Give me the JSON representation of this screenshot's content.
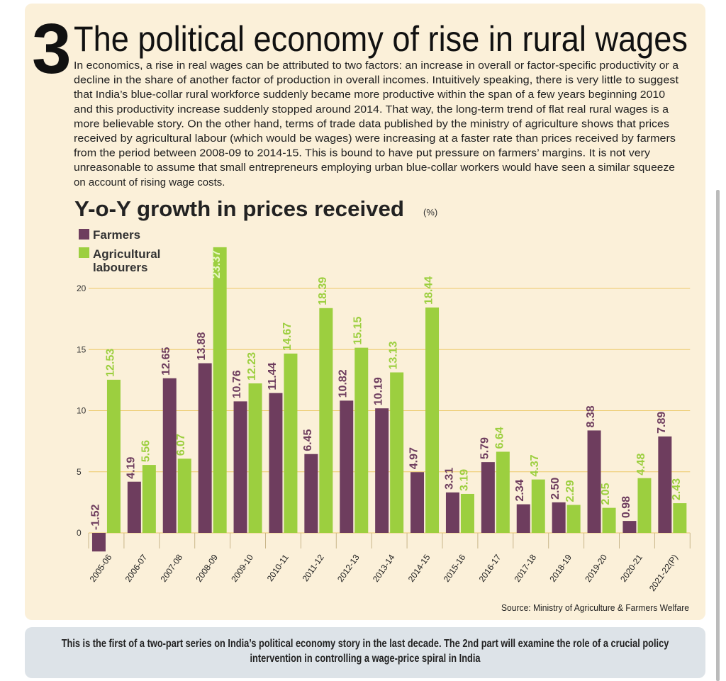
{
  "header": {
    "number": "3",
    "title": "The political economy of rise in rural wages"
  },
  "body": {
    "lines": [
      "In economics, a rise in real wages can be attributed to two factors: an increase in overall or factor-specific productivity or a",
      "decline in the share of another factor of production in overall incomes. Intuitively speaking, there is very little to suggest",
      "that India’s blue-collar rural workforce suddenly became more productive within the span of a few years beginning 2010",
      "and this productivity increase suddenly stopped around 2014. That way, the long-term trend of flat real rural wages is a",
      "more believable story. On the other hand, terms of trade data published by the ministry of agriculture shows that prices",
      "received by agricultural labour (which would be wages) were increasing at a faster rate than prices received by farmers",
      "from the period between 2008-09 to 2014-15. This is bound to have put pressure on farmers’ margins. It is not very",
      "unreasonable to assume that small entrepreneurs employing urban blue-collar workers would have seen a similar squeeze",
      "on account of rising wage costs."
    ]
  },
  "chart_data": {
    "type": "bar",
    "title": "Y-o-Y growth in prices received",
    "unit": "(%)",
    "categories": [
      "2005-06",
      "2006-07",
      "2007-08",
      "2008-09",
      "2009-10",
      "2010-11",
      "2011-12",
      "2012-13",
      "2013-14",
      "2014-15",
      "2015-16",
      "2016-17",
      "2017-18",
      "2018-19",
      "2019-20",
      "2020-21",
      "2021-22(P)"
    ],
    "series": [
      {
        "name": "Farmers",
        "color": "#6e3d5e",
        "values": [
          -1.52,
          4.19,
          12.65,
          13.88,
          10.76,
          11.44,
          6.45,
          10.82,
          10.19,
          4.97,
          3.31,
          5.79,
          2.34,
          2.5,
          8.38,
          0.98,
          7.89
        ],
        "value_labels": [
          "-1.52",
          "4.19",
          "12.65",
          "13.88",
          "10.76",
          "11.44",
          "6.45",
          "10.82",
          "10.19",
          "4.97",
          "3.31",
          "5.79",
          "2.34",
          "2.50",
          "8.38",
          "0.98",
          "7.89"
        ]
      },
      {
        "name": "Agricultural labourers",
        "color": "#9ccf3f",
        "values": [
          12.53,
          5.56,
          6.07,
          23.37,
          12.23,
          14.67,
          18.39,
          15.15,
          13.13,
          18.44,
          3.19,
          6.64,
          4.37,
          2.29,
          2.05,
          4.48,
          2.43
        ],
        "value_labels": [
          "12.53",
          "5.56",
          "6.07",
          "23.37",
          "12.23",
          "14.67",
          "18.39",
          "15.15",
          "13.13",
          "18.44",
          "3.19",
          "6.64",
          "4.37",
          "2.29",
          "2.05",
          "4.48",
          "2.43"
        ]
      }
    ],
    "ylim": [
      -2,
      24
    ],
    "yticks": [
      0,
      5,
      10,
      15,
      20
    ],
    "grid": true,
    "source": "Source: Ministry of Agriculture & Farmers Welfare"
  },
  "footer": {
    "note": "This is the first of a two-part series on India’s political economy story in the last decade. The 2nd part will examine the role of a crucial policy intervention in controlling a wage-price spiral in India"
  }
}
